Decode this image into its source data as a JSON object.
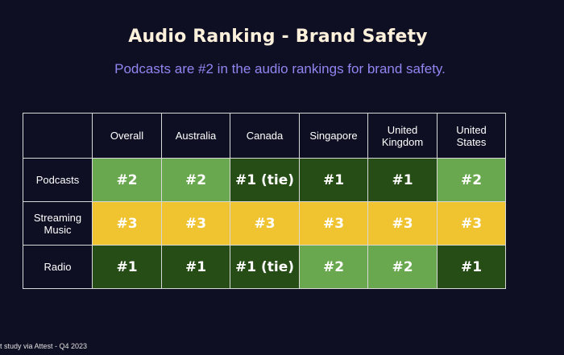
{
  "title": "Audio Ranking - Brand Safety",
  "subtitle": "Podcasts are #2 in the audio rankings for brand safety.",
  "footer": "t study via Attest - Q4 2023",
  "colors": {
    "rank1": "#274d17",
    "rank2": "#6aa84f",
    "rank3": "#f0c330",
    "background": "#0f0f24",
    "title": "#fdf1dc",
    "subtitle": "#8f86f0"
  },
  "chart_data": {
    "type": "table",
    "title": "Audio Ranking - Brand Safety",
    "columns": [
      "Overall",
      "Australia",
      "Canada",
      "Singapore",
      "United Kingdom",
      "United States"
    ],
    "column_lines": [
      [
        "Overall"
      ],
      [
        "Australia"
      ],
      [
        "Canada"
      ],
      [
        "Singapore"
      ],
      [
        "United",
        "Kingdom"
      ],
      [
        "United",
        "States"
      ]
    ],
    "rows": [
      {
        "label": "Podcasts",
        "label_lines": [
          "Podcasts"
        ],
        "values": [
          "#2",
          "#2",
          "#1 (tie)",
          "#1",
          "#1",
          "#2"
        ]
      },
      {
        "label": "Streaming Music",
        "label_lines": [
          "Streaming",
          "Music"
        ],
        "values": [
          "#3",
          "#3",
          "#3",
          "#3",
          "#3",
          "#3"
        ]
      },
      {
        "label": "Radio",
        "label_lines": [
          "Radio"
        ],
        "values": [
          "#1",
          "#1",
          "#1 (tie)",
          "#2",
          "#2",
          "#1"
        ]
      }
    ]
  }
}
